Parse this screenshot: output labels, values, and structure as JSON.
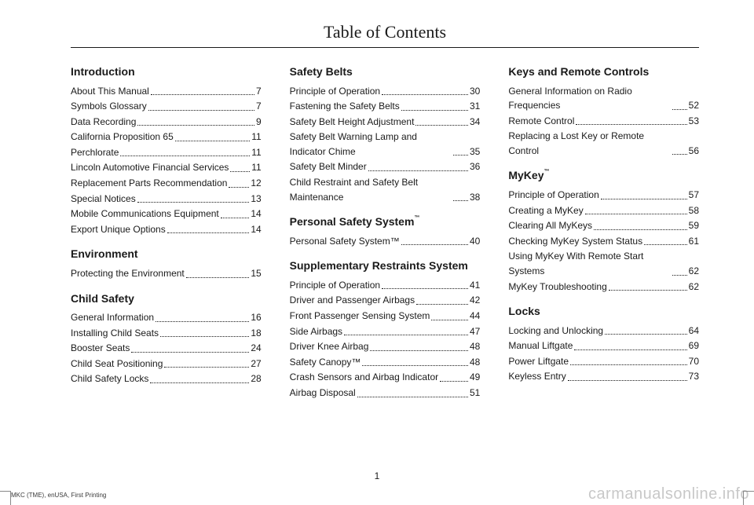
{
  "title": "Table of Contents",
  "pageNumber": "1",
  "footerLeft": "MKC (TME), enUSA, First Printing",
  "footerRight": "carmanualsonline.info",
  "columns": [
    [
      {
        "type": "heading",
        "text": "Introduction"
      },
      {
        "type": "entry",
        "label": "About This Manual",
        "page": "7"
      },
      {
        "type": "entry",
        "label": "Symbols Glossary",
        "page": "7"
      },
      {
        "type": "entry",
        "label": "Data Recording",
        "page": "9"
      },
      {
        "type": "entry",
        "label": "California Proposition 65",
        "page": "11"
      },
      {
        "type": "entry",
        "label": "Perchlorate",
        "page": "11"
      },
      {
        "type": "entry",
        "label": "Lincoln Automotive Financial Services",
        "page": "11",
        "wrap": true
      },
      {
        "type": "entry",
        "label": "Replacement Parts Recommendation",
        "page": "12"
      },
      {
        "type": "entry",
        "label": "Special Notices",
        "page": "13"
      },
      {
        "type": "entry",
        "label": "Mobile Communications Equipment",
        "page": "14"
      },
      {
        "type": "entry",
        "label": "Export Unique Options",
        "page": "14"
      },
      {
        "type": "heading",
        "text": "Environment"
      },
      {
        "type": "entry",
        "label": "Protecting the Environment",
        "page": "15"
      },
      {
        "type": "heading",
        "text": "Child Safety"
      },
      {
        "type": "entry",
        "label": "General Information",
        "page": "16"
      },
      {
        "type": "entry",
        "label": "Installing Child Seats",
        "page": "18"
      },
      {
        "type": "entry",
        "label": "Booster Seats",
        "page": "24"
      },
      {
        "type": "entry",
        "label": "Child Seat Positioning",
        "page": "27"
      },
      {
        "type": "entry",
        "label": "Child Safety Locks",
        "page": "28"
      }
    ],
    [
      {
        "type": "heading",
        "text": "Safety Belts"
      },
      {
        "type": "entry",
        "label": "Principle of Operation",
        "page": "30"
      },
      {
        "type": "entry",
        "label": "Fastening the Safety Belts",
        "page": "31"
      },
      {
        "type": "entry",
        "label": "Safety Belt Height Adjustment",
        "page": "34"
      },
      {
        "type": "entry",
        "label": "Safety Belt Warning Lamp and Indicator Chime",
        "page": "35",
        "wrap": true
      },
      {
        "type": "entry",
        "label": "Safety Belt Minder",
        "page": "36"
      },
      {
        "type": "entry",
        "label": "Child Restraint and Safety Belt Maintenance",
        "page": "38",
        "wrap": true
      },
      {
        "type": "heading",
        "text": "Personal Safety System",
        "tm": true
      },
      {
        "type": "entry",
        "label": "Personal Safety System™",
        "page": "40"
      },
      {
        "type": "heading",
        "text": "Supplementary Restraints System",
        "indent": true
      },
      {
        "type": "entry",
        "label": "Principle of Operation",
        "page": "41"
      },
      {
        "type": "entry",
        "label": "Driver and Passenger Airbags",
        "page": "42"
      },
      {
        "type": "entry",
        "label": "Front Passenger Sensing System",
        "page": "44"
      },
      {
        "type": "entry",
        "label": "Side Airbags",
        "page": "47"
      },
      {
        "type": "entry",
        "label": "Driver Knee Airbag",
        "page": "48"
      },
      {
        "type": "entry",
        "label": "Safety Canopy™",
        "page": "48"
      },
      {
        "type": "entry",
        "label": "Crash Sensors and Airbag Indicator",
        "page": "49"
      },
      {
        "type": "entry",
        "label": "Airbag Disposal",
        "page": "51"
      }
    ],
    [
      {
        "type": "heading",
        "text": "Keys and Remote Controls"
      },
      {
        "type": "entry",
        "label": "General Information on Radio Frequencies",
        "page": "52",
        "wrap": true
      },
      {
        "type": "entry",
        "label": "Remote Control",
        "page": "53"
      },
      {
        "type": "entry",
        "label": "Replacing a Lost Key or Remote Control",
        "page": "56",
        "wrap": true
      },
      {
        "type": "heading",
        "text": "MyKey",
        "tm": true
      },
      {
        "type": "entry",
        "label": "Principle of Operation",
        "page": "57"
      },
      {
        "type": "entry",
        "label": "Creating a MyKey",
        "page": "58"
      },
      {
        "type": "entry",
        "label": "Clearing All MyKeys",
        "page": "59"
      },
      {
        "type": "entry",
        "label": "Checking MyKey System Status",
        "page": "61"
      },
      {
        "type": "entry",
        "label": "Using MyKey With Remote Start Systems",
        "page": "62",
        "wrap": true
      },
      {
        "type": "entry",
        "label": "MyKey Troubleshooting",
        "page": "62"
      },
      {
        "type": "heading",
        "text": "Locks"
      },
      {
        "type": "entry",
        "label": "Locking and Unlocking",
        "page": "64"
      },
      {
        "type": "entry",
        "label": "Manual Liftgate",
        "page": "69"
      },
      {
        "type": "entry",
        "label": "Power Liftgate",
        "page": "70"
      },
      {
        "type": "entry",
        "label": "Keyless Entry",
        "page": "73"
      }
    ]
  ]
}
